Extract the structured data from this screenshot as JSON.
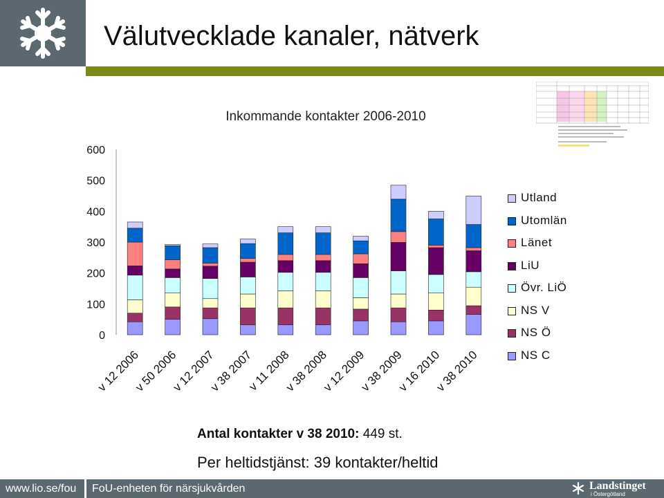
{
  "slide_title": "Välutvecklade kanaler, nätverk",
  "chart_data": {
    "type": "bar",
    "stacked": true,
    "title": "Inkommande kontakter 2006-2010",
    "xlabel": "",
    "ylabel": "",
    "ylim": [
      0,
      600
    ],
    "yticks": [
      0,
      100,
      200,
      300,
      400,
      500,
      600
    ],
    "categories": [
      "v 12 2006",
      "v 50 2006",
      "v 12 2007",
      "v 38 2007",
      "v 11 2008",
      "v 38 2008",
      "v 12 2009",
      "v 38 2009",
      "v 16 2010",
      "v 38 2010"
    ],
    "series": [
      {
        "name": "NS C",
        "color": "#9999ff",
        "values": [
          42,
          50,
          52,
          32,
          32,
          32,
          45,
          42,
          45,
          66
        ]
      },
      {
        "name": "NS Ö",
        "color": "#993366",
        "values": [
          28,
          40,
          35,
          55,
          55,
          55,
          38,
          45,
          35,
          28
        ]
      },
      {
        "name": "NS V",
        "color": "#ffffcc",
        "values": [
          43,
          45,
          30,
          45,
          55,
          55,
          37,
          45,
          55,
          60
        ]
      },
      {
        "name": "Övr. LiÖ",
        "color": "#ccffff",
        "values": [
          80,
          50,
          65,
          55,
          60,
          60,
          65,
          75,
          60,
          50
        ]
      },
      {
        "name": "LiU",
        "color": "#660066",
        "values": [
          30,
          28,
          40,
          48,
          38,
          38,
          45,
          92,
          87,
          68
        ]
      },
      {
        "name": "Länet",
        "color": "#ff8080",
        "values": [
          77,
          30,
          10,
          12,
          20,
          20,
          32,
          35,
          8,
          10
        ]
      },
      {
        "name": "Utomlän",
        "color": "#0066cc",
        "values": [
          45,
          45,
          50,
          48,
          70,
          70,
          42,
          105,
          85,
          75
        ]
      },
      {
        "name": "Utland",
        "color": "#ccccff",
        "values": [
          20,
          4,
          12,
          15,
          20,
          20,
          15,
          45,
          25,
          92
        ]
      }
    ],
    "legend": "right"
  },
  "notes": {
    "line1_label": "Antal kontakter v 38 2010:",
    "line1_value": "449 st.",
    "line2": "Per heltidstjänst: 39 kontakter/heltid"
  },
  "footer": {
    "url": "www.lio.se/fou",
    "unit": "FoU-enheten för närsjukvården",
    "org": "Landstinget",
    "org_sub": "i Östergötland"
  }
}
